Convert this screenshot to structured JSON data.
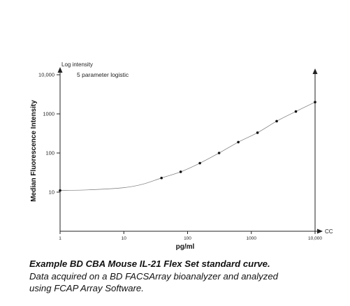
{
  "chart_data": {
    "type": "scatter",
    "x_scale": "log",
    "y_scale": "log",
    "xlim": [
      1,
      10000
    ],
    "ylim": [
      1,
      10000
    ],
    "x_ticks": [
      1,
      10,
      100,
      1000,
      10000
    ],
    "x_tick_labels": [
      "1",
      "10",
      "100",
      "1000",
      "10,000"
    ],
    "y_ticks": [
      10,
      100,
      1000,
      10000
    ],
    "y_tick_labels": [
      "10",
      "100",
      "1000",
      "10,000"
    ],
    "xlabel": "pg/ml",
    "ylabel": "Median Fluorescence Intensity",
    "y_axis_arrow_label": "Log intensity",
    "x_axis_arrow_label": "CC",
    "annotation": "5 parameter logistic",
    "grid": false,
    "series": [
      {
        "x": [
          1,
          39,
          78,
          156,
          312,
          625,
          1250,
          2500,
          5000,
          10000
        ],
        "values": [
          11,
          23,
          33,
          55,
          100,
          190,
          330,
          650,
          1150,
          2000
        ]
      }
    ],
    "curve": {
      "x": [
        1,
        3,
        10,
        20,
        39,
        78,
        156,
        312,
        625,
        1250,
        2500,
        5000,
        10000
      ],
      "values": [
        11,
        11.5,
        13,
        16,
        23,
        33,
        55,
        100,
        190,
        330,
        650,
        1150,
        2000
      ]
    }
  },
  "caption": {
    "title": "Example BD CBA Mouse IL-21 Flex Set standard curve.",
    "line1": "Data acquired on a BD FACSArray bioanalyzer and analyzed",
    "line2": "using FCAP Array Software."
  }
}
